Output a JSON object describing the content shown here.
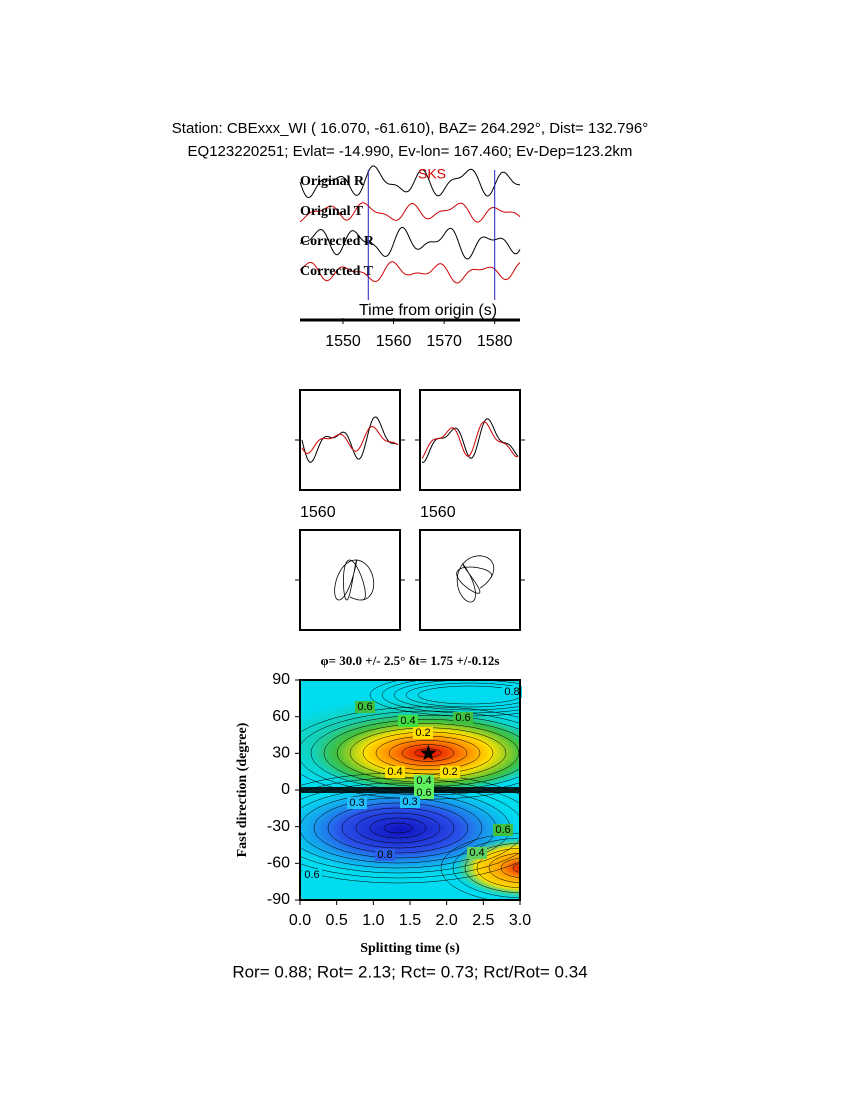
{
  "header": {
    "line1": "Station: CBExxx_WI (  16.070,  -61.610), BAZ=  264.292°, Dist=  132.796°",
    "line2": "EQ123220251; Evlat= -14.990, Ev-lon= 167.460; Ev-Dep=123.2km"
  },
  "chart_data": [
    {
      "type": "seismogram",
      "trace_labels": [
        "Original R",
        "Original T",
        "Corrected R",
        "Corrected T"
      ],
      "phase": "SKS",
      "xlabel": "Time from origin (s)",
      "xlim": [
        1541.5,
        1585
      ],
      "xticks": [
        1550,
        1560,
        1570,
        1580
      ],
      "window": [
        1555,
        1580
      ],
      "colors": [
        "#000000",
        "#d00000"
      ]
    },
    {
      "type": "overlay",
      "xticks": [
        1560,
        1560
      ]
    },
    {
      "type": "contour",
      "title": "φ= 30.0 +/- 2.5° δt= 1.75 +/-0.12s",
      "xlabel": "Splitting time (s)",
      "ylabel": "Fast direction (degree)",
      "xlim": [
        0,
        3
      ],
      "ylim": [
        -90,
        90
      ],
      "xticks": [
        {
          "value": 0,
          "label": "0.0"
        },
        {
          "value": 0.5,
          "label": "0.5"
        },
        {
          "value": 1,
          "label": "1.0"
        },
        {
          "value": 1.5,
          "label": "1.5"
        },
        {
          "value": 2,
          "label": "2.0"
        },
        {
          "value": 2.5,
          "label": "2.5"
        },
        {
          "value": 3,
          "label": "3.0"
        }
      ],
      "yticks": [
        90,
        60,
        30,
        0,
        -30,
        -60,
        -90
      ],
      "best": {
        "x": 1.75,
        "y": 30
      },
      "contour_labels": [
        "0.6",
        "0.4",
        "0.2",
        "0.6",
        "0.4",
        "0.2",
        "0.4",
        "0.6",
        "0.3",
        "0.3",
        "0.8",
        "0.4",
        "0.6",
        "0.8",
        "0.6"
      ]
    }
  ],
  "footer": "Ror= 0.88; Rot= 2.13; Rct= 0.73; Rct/Rot= 0.34"
}
